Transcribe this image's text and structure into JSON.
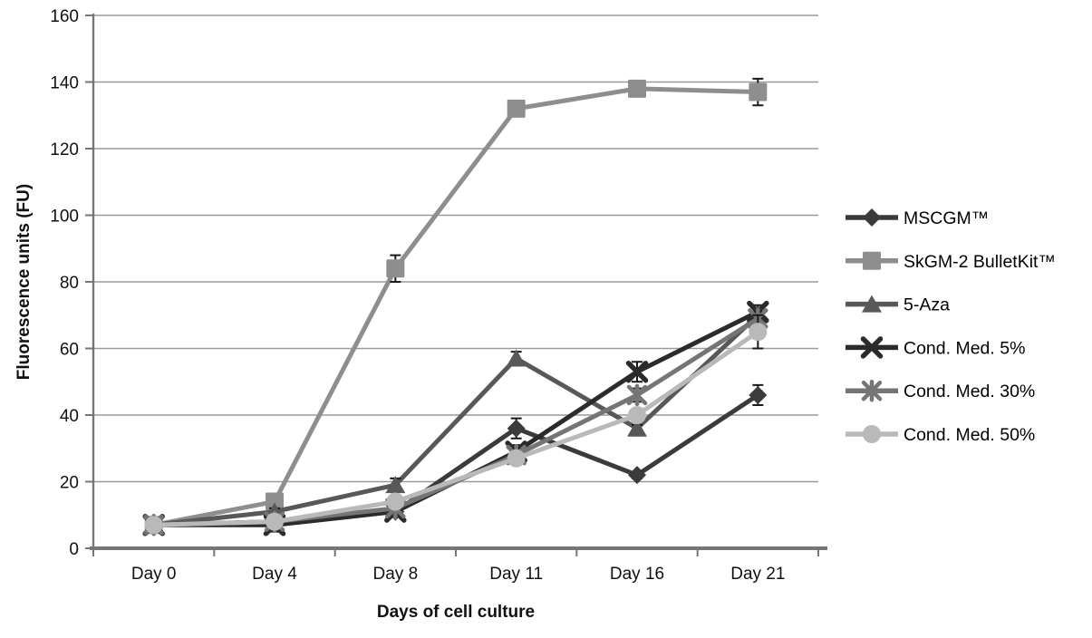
{
  "chart_data": {
    "type": "line",
    "title": "",
    "xlabel": "Days of cell culture",
    "ylabel": "Fluorescence units (FU)",
    "categories": [
      "Day 0",
      "Day 4",
      "Day 8",
      "Day 11",
      "Day 16",
      "Day 21"
    ],
    "ylim": [
      0,
      160
    ],
    "yticks": [
      0,
      20,
      40,
      60,
      80,
      100,
      120,
      140,
      160
    ],
    "grid": "horizontal",
    "legend_position": "right-middle",
    "axis_color": "#767676",
    "gridline_color": "#9a9a9a",
    "error_bar_color": "#1a1a1a",
    "series": [
      {
        "name": "MSCGM™",
        "marker": "diamond",
        "color": "#3b3b3b",
        "values": [
          7,
          8,
          11,
          36,
          22,
          46
        ],
        "error_bars": [
          0,
          1,
          1,
          3,
          1,
          3
        ]
      },
      {
        "name": "SkGM-2 BulletKit™",
        "marker": "square",
        "color": "#8e8e8e",
        "values": [
          7,
          14,
          84,
          132,
          138,
          137
        ],
        "error_bars": [
          0,
          1,
          4,
          1,
          1,
          4
        ]
      },
      {
        "name": "5-Aza",
        "marker": "triangle",
        "color": "#585858",
        "values": [
          7,
          11,
          19,
          57,
          36,
          70
        ],
        "error_bars": [
          0,
          1,
          2,
          2,
          1,
          2
        ]
      },
      {
        "name": "Cond. Med. 5%",
        "marker": "x",
        "color": "#2b2b2b",
        "values": [
          7,
          7,
          11,
          29,
          53,
          71
        ],
        "error_bars": [
          0,
          2,
          1,
          2,
          3,
          2
        ]
      },
      {
        "name": "Cond. Med. 30%",
        "marker": "asterisk",
        "color": "#757575",
        "values": [
          7,
          8,
          12,
          28,
          46,
          69
        ],
        "error_bars": [
          0,
          1,
          1,
          2,
          2,
          2
        ]
      },
      {
        "name": "Cond. Med. 50%",
        "marker": "circle",
        "color": "#b9b9b9",
        "values": [
          7,
          8,
          14,
          27,
          40,
          65
        ],
        "error_bars": [
          0,
          1,
          1,
          1,
          1,
          5
        ]
      }
    ]
  }
}
